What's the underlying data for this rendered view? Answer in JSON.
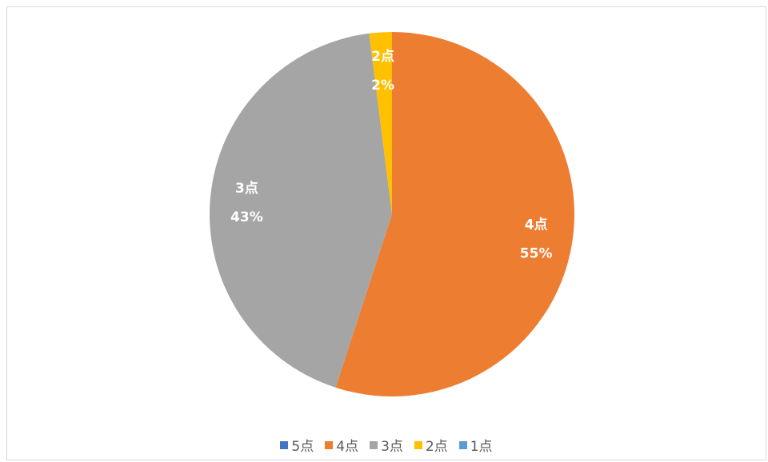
{
  "chart_data": {
    "type": "pie",
    "categories": [
      "5点",
      "4点",
      "3点",
      "2点",
      "1点"
    ],
    "values": [
      0,
      55,
      43,
      2,
      0
    ],
    "labels": [
      {
        "category": "5点",
        "percent": "0%"
      },
      {
        "category": "4点",
        "percent": "55%"
      },
      {
        "category": "3点",
        "percent": "43%"
      },
      {
        "category": "2点",
        "percent": "2%"
      },
      {
        "category": "1点",
        "percent": "0%"
      }
    ],
    "colors": [
      "#4472c4",
      "#ed7d31",
      "#a5a5a5",
      "#ffc000",
      "#5b9bd5"
    ],
    "legend": "bottom",
    "title": ""
  }
}
